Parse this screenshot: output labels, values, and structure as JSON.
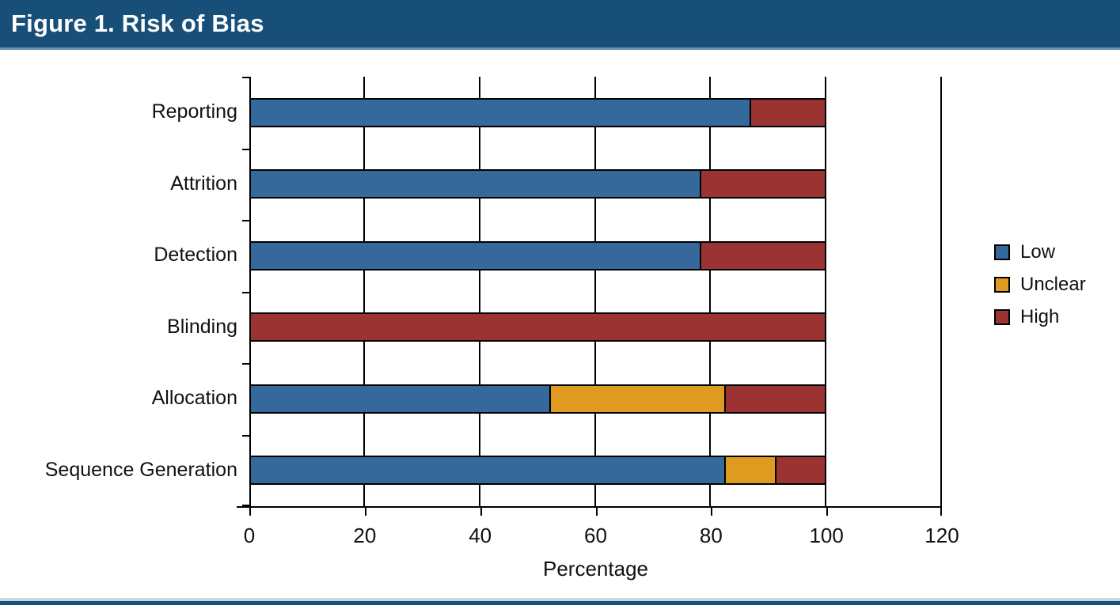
{
  "header": {
    "title": "Figure 1. Risk of Bias"
  },
  "colors": {
    "header_bg": "#174F78",
    "header_accent_line": "#6B8FAE",
    "footer_light_line": "#C9D6E0",
    "footer_dark_line": "#174F78",
    "low": "#35689B",
    "unclear": "#DE9B1F",
    "high": "#9B3332"
  },
  "chart_data": {
    "type": "bar",
    "orientation": "horizontal-stacked",
    "title": "Figure 1. Risk of Bias",
    "xlabel": "Percentage",
    "xlim": [
      0,
      120
    ],
    "xticks": [
      0,
      20,
      40,
      60,
      80,
      100,
      120
    ],
    "grid": "vertical-black-lines-every-20",
    "legend_position": "right",
    "categories": [
      "Reporting",
      "Attrition",
      "Detection",
      "Blinding",
      "Allocation",
      "Sequence Generation"
    ],
    "legend": [
      {
        "label": "Low",
        "color": "#35689B"
      },
      {
        "label": "Unclear",
        "color": "#DE9B1F"
      },
      {
        "label": "High",
        "color": "#9B3332"
      }
    ],
    "series": [
      {
        "name": "Low",
        "values": [
          87.0,
          78.3,
          78.3,
          0,
          52.2,
          82.6
        ]
      },
      {
        "name": "Unclear",
        "values": [
          0,
          0,
          0,
          0,
          30.4,
          8.7
        ]
      },
      {
        "name": "High",
        "values": [
          13.0,
          21.7,
          21.7,
          100,
          17.4,
          8.7
        ]
      }
    ]
  }
}
